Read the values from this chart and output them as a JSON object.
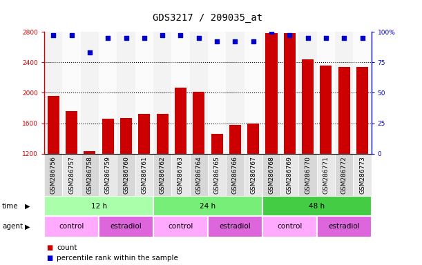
{
  "title": "GDS3217 / 209035_at",
  "samples": [
    "GSM286756",
    "GSM286757",
    "GSM286758",
    "GSM286759",
    "GSM286760",
    "GSM286761",
    "GSM286762",
    "GSM286763",
    "GSM286764",
    "GSM286765",
    "GSM286766",
    "GSM286767",
    "GSM286768",
    "GSM286769",
    "GSM286770",
    "GSM286771",
    "GSM286772",
    "GSM286773"
  ],
  "counts": [
    1960,
    1760,
    1230,
    1660,
    1670,
    1720,
    1720,
    2070,
    2010,
    1460,
    1580,
    1600,
    2780,
    2780,
    2440,
    2360,
    2340,
    2340
  ],
  "percentiles": [
    97,
    97,
    83,
    95,
    95,
    95,
    97,
    97,
    95,
    92,
    92,
    92,
    100,
    97,
    95,
    95,
    95,
    95
  ],
  "ylim_left": [
    1200,
    2800
  ],
  "ylim_right": [
    0,
    100
  ],
  "yticks_left": [
    1200,
    1600,
    2000,
    2400,
    2800
  ],
  "yticks_right": [
    0,
    25,
    50,
    75,
    100
  ],
  "bar_color": "#cc0000",
  "dot_color": "#0000cc",
  "time_groups": [
    {
      "label": "12 h",
      "start": 0,
      "end": 6,
      "color": "#aaffaa"
    },
    {
      "label": "24 h",
      "start": 6,
      "end": 12,
      "color": "#77ee77"
    },
    {
      "label": "48 h",
      "start": 12,
      "end": 18,
      "color": "#44cc44"
    }
  ],
  "agent_groups": [
    {
      "label": "control",
      "start": 0,
      "end": 3,
      "color": "#ffaaff"
    },
    {
      "label": "estradiol",
      "start": 3,
      "end": 6,
      "color": "#dd66dd"
    },
    {
      "label": "control",
      "start": 6,
      "end": 9,
      "color": "#ffaaff"
    },
    {
      "label": "estradiol",
      "start": 9,
      "end": 12,
      "color": "#dd66dd"
    },
    {
      "label": "control",
      "start": 12,
      "end": 15,
      "color": "#ffaaff"
    },
    {
      "label": "estradiol",
      "start": 15,
      "end": 18,
      "color": "#dd66dd"
    }
  ],
  "time_label": "time",
  "agent_label": "agent",
  "legend_count": "count",
  "legend_pct": "percentile rank within the sample",
  "title_fontsize": 10,
  "tick_fontsize": 6.5,
  "annotation_fontsize": 7.5,
  "label_fontsize": 7.5
}
